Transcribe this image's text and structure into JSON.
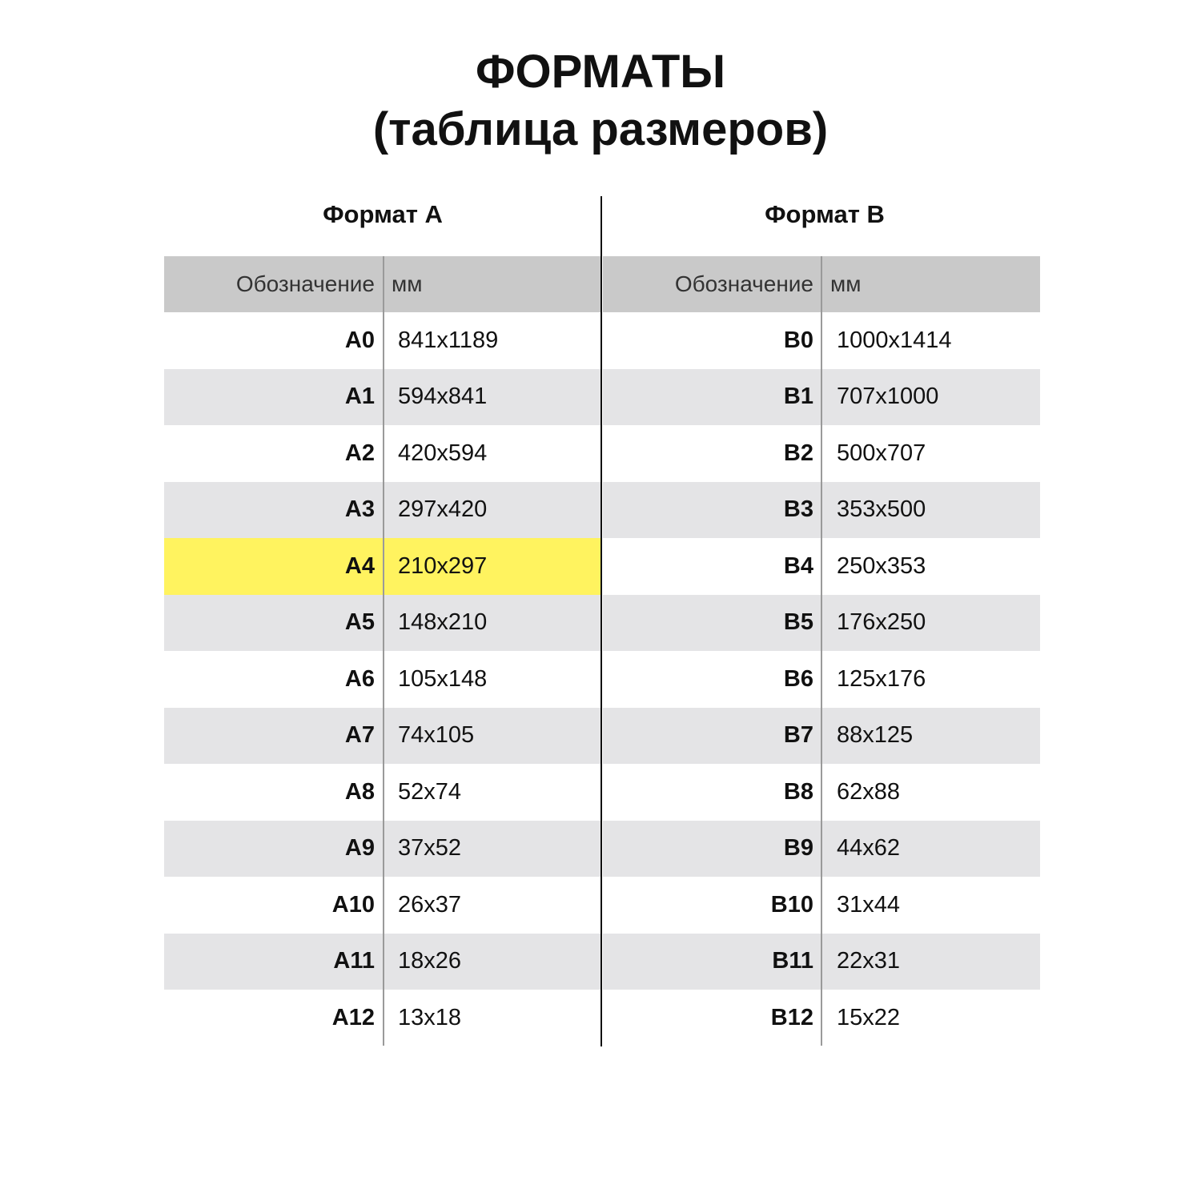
{
  "title": {
    "line1": "ФОРМАТЫ",
    "line2": "(таблица размеров)"
  },
  "colors": {
    "header_bg": "#c9c9c9",
    "alt_row_bg": "#e4e4e6",
    "highlight": "#fff35f"
  },
  "tables": [
    {
      "heading": "Формат А",
      "columns": [
        "Обозначение",
        "мм"
      ],
      "highlighted": "A4",
      "rows": [
        [
          "A0",
          "841x1189"
        ],
        [
          "A1",
          "594x841"
        ],
        [
          "A2",
          "420x594"
        ],
        [
          "A3",
          "297x420"
        ],
        [
          "A4",
          "210x297"
        ],
        [
          "A5",
          "148x210"
        ],
        [
          "A6",
          "105x148"
        ],
        [
          "A7",
          "74x105"
        ],
        [
          "A8",
          "52x74"
        ],
        [
          "A9",
          "37x52"
        ],
        [
          "A10",
          "26x37"
        ],
        [
          "A11",
          "18x26"
        ],
        [
          "A12",
          "13x18"
        ]
      ]
    },
    {
      "heading": "Формат В",
      "columns": [
        "Обозначение",
        "мм"
      ],
      "highlighted": null,
      "rows": [
        [
          "B0",
          "1000x1414"
        ],
        [
          "B1",
          "707x1000"
        ],
        [
          "B2",
          "500x707"
        ],
        [
          "B3",
          "353x500"
        ],
        [
          "B4",
          "250x353"
        ],
        [
          "B5",
          "176x250"
        ],
        [
          "B6",
          "125x176"
        ],
        [
          "B7",
          "88x125"
        ],
        [
          "B8",
          "62x88"
        ],
        [
          "B9",
          "44x62"
        ],
        [
          "B10",
          "31x44"
        ],
        [
          "B11",
          "22x31"
        ],
        [
          "B12",
          "15x22"
        ]
      ]
    }
  ]
}
